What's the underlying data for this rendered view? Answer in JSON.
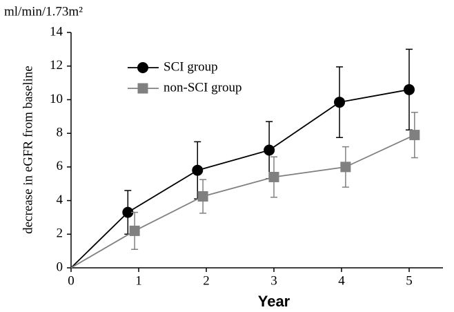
{
  "chart_data": {
    "type": "line",
    "y_unit": "ml/min/1.73m²",
    "ylabel": "decrease in eGFR from baseline",
    "xlabel": "Year",
    "xlim": [
      0,
      5.5
    ],
    "xticks": [
      0,
      1,
      2,
      3,
      4,
      5
    ],
    "ylim": [
      0,
      14
    ],
    "yticks": [
      0,
      2,
      4,
      6,
      8,
      10,
      12,
      14
    ],
    "grid": false,
    "legend": "upper left",
    "series": [
      {
        "name": "SCI group",
        "color": "#000000",
        "marker": "circle",
        "x": [
          0,
          0.84,
          1.87,
          2.93,
          3.97,
          5.0
        ],
        "values": [
          0,
          3.3,
          5.8,
          7.0,
          9.85,
          10.6
        ],
        "errors": [
          null,
          1.3,
          1.7,
          1.7,
          2.1,
          2.4
        ]
      },
      {
        "name": "non-SCI group",
        "color": "#808080",
        "marker": "square",
        "x": [
          0,
          0.94,
          1.95,
          3.0,
          4.06,
          5.08
        ],
        "values": [
          0,
          2.2,
          4.25,
          5.4,
          6.0,
          7.9
        ],
        "errors": [
          null,
          1.1,
          1.0,
          1.2,
          1.2,
          1.35
        ]
      }
    ]
  }
}
